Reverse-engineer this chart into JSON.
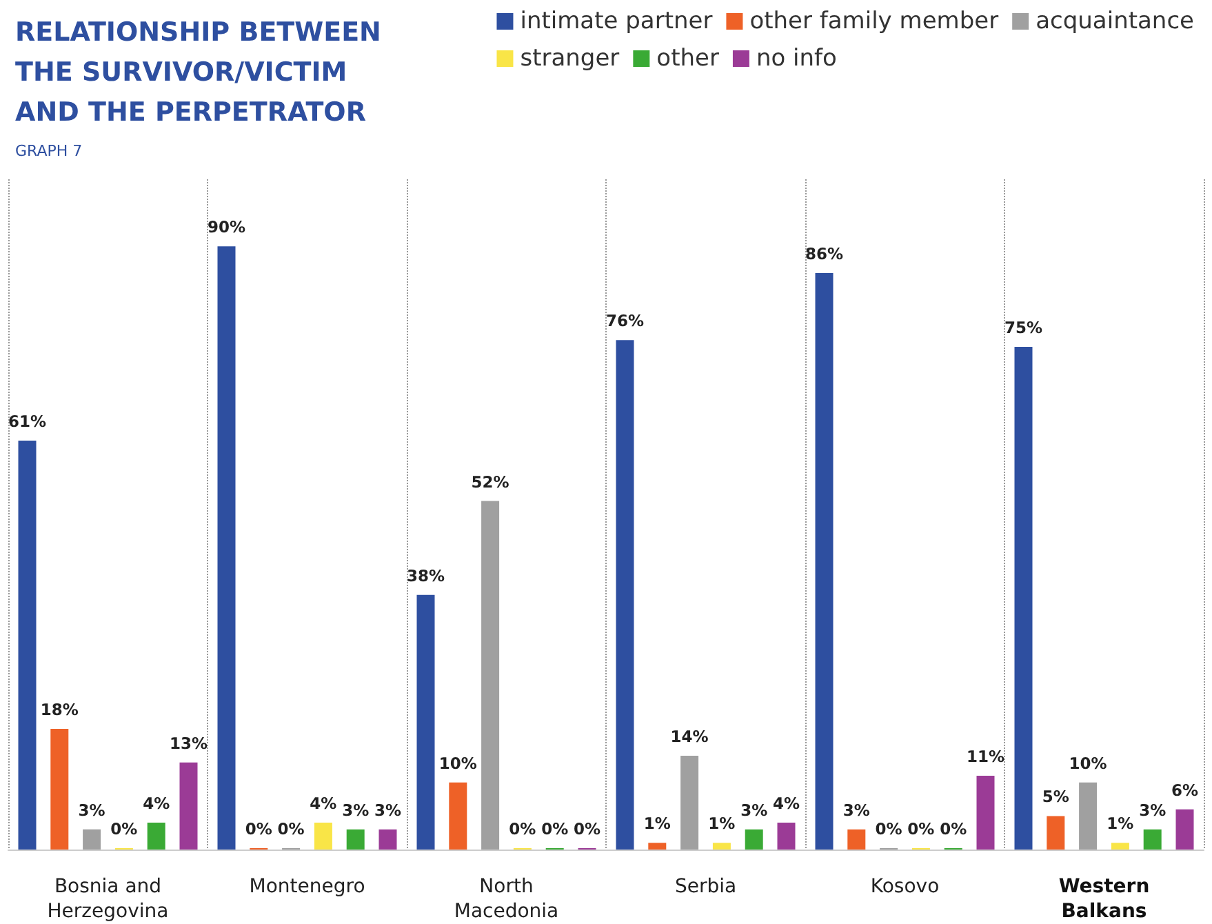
{
  "chart_data": {
    "type": "bar",
    "title": "RELATIONSHIP BETWEEN\nTHE SURVIVOR/VICTIM\nAND THE PERPETRATOR",
    "subtitle": "GRAPH 7",
    "categories": [
      "Bosnia and\nHerzegovina",
      "Montenegro",
      "North\nMacedonia",
      "Serbia",
      "Kosovo",
      "Western\nBalkans"
    ],
    "series": [
      {
        "name": "intimate partner",
        "color": "#2e4fa0",
        "values": [
          61,
          90,
          38,
          76,
          86,
          75
        ],
        "value_labels": [
          "61%",
          "90%",
          "38%",
          "76%",
          "86%",
          "75%"
        ]
      },
      {
        "name": "other family member",
        "color": "#ee6127",
        "values": [
          18,
          0,
          10,
          1,
          3,
          5
        ],
        "value_labels": [
          "18%",
          "0%",
          "10%",
          "1%",
          "3%",
          "5%"
        ]
      },
      {
        "name": "acquaintance",
        "color": "#a0a0a0",
        "values": [
          3,
          0,
          52,
          14,
          0,
          10
        ],
        "value_labels": [
          "3%",
          "0%",
          "52%",
          "14%",
          "0%",
          "10%"
        ]
      },
      {
        "name": "stranger",
        "color": "#f9e547",
        "values": [
          0,
          4,
          0,
          1,
          0,
          1
        ],
        "value_labels": [
          "0%",
          "4%",
          "0%",
          "1%",
          "0%",
          "1%"
        ]
      },
      {
        "name": "other",
        "color": "#3aaa35",
        "values": [
          4,
          3,
          0,
          3,
          0,
          3
        ],
        "value_labels": [
          "4%",
          "3%",
          "0%",
          "3%",
          "0%",
          "3%"
        ]
      },
      {
        "name": "no info",
        "color": "#9b3b96",
        "values": [
          13,
          3,
          0,
          4,
          11,
          6
        ],
        "value_labels": [
          "13%",
          "3%",
          "0%",
          "4%",
          "11%",
          "6%"
        ]
      }
    ],
    "legend": "top right",
    "grid": "x"
  }
}
